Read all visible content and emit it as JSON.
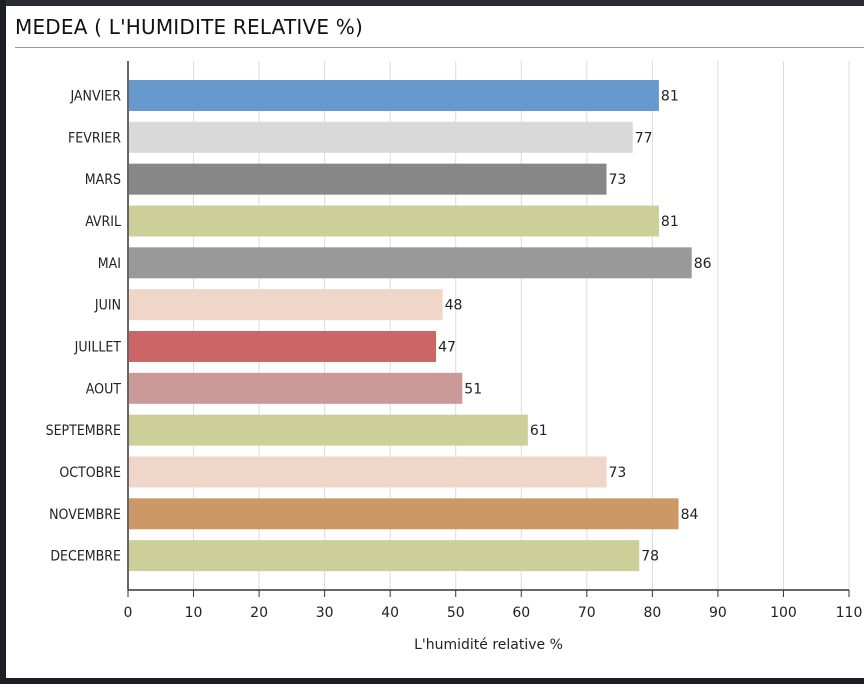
{
  "title": "MEDEA ( L'HUMIDITE RELATIVE  %)",
  "chart_data": {
    "type": "bar",
    "orientation": "horizontal",
    "title": "MEDEA ( L'HUMIDITE RELATIVE  %)",
    "xlabel": "L'humidité relative %",
    "ylabel": "",
    "xlim": [
      0,
      110
    ],
    "x_ticks": [
      0,
      10,
      20,
      30,
      40,
      50,
      60,
      70,
      80,
      90,
      100,
      110
    ],
    "grid": true,
    "legend": "none",
    "categories": [
      "JANVIER",
      "FEVRIER",
      "MARS",
      "AVRIL",
      "MAI",
      "JUIN",
      "JUILLET",
      "AOUT",
      "SEPTEMBRE",
      "OCTOBRE",
      "NOVEMBRE",
      "DECEMBRE"
    ],
    "values": [
      81,
      77,
      73,
      81,
      86,
      48,
      47,
      51,
      61,
      73,
      84,
      78
    ],
    "colors": [
      "#6699cc",
      "#d9d9d9",
      "#878787",
      "#cdcf98",
      "#999999",
      "#f0d5c9",
      "#cc6666",
      "#cc9999",
      "#cdcf98",
      "#f0d5c9",
      "#cc9966",
      "#cdcf98"
    ]
  }
}
